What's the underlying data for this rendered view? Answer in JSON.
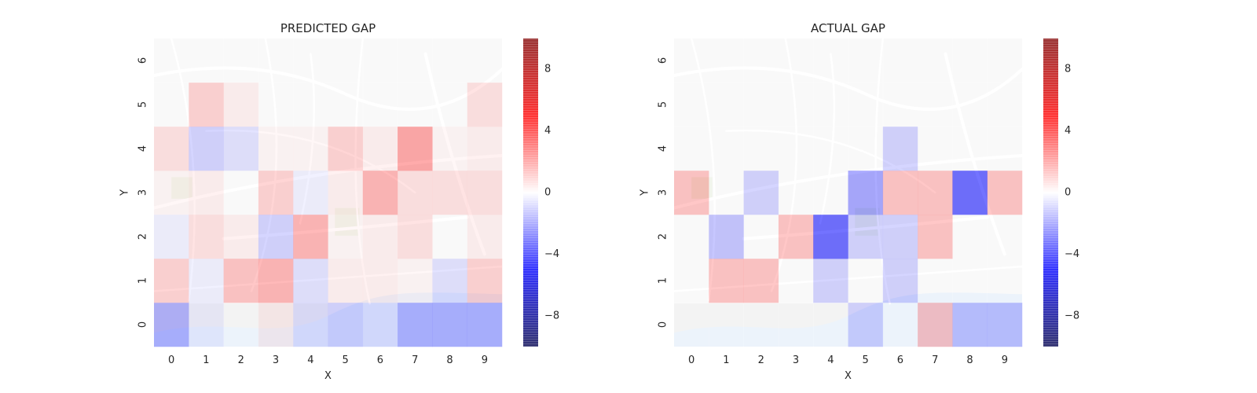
{
  "chart_data": [
    {
      "type": "heatmap",
      "title": "PREDICTED GAP",
      "xlabel": "X",
      "ylabel": "Y",
      "x": [
        0,
        1,
        2,
        3,
        4,
        5,
        6,
        7,
        8,
        9
      ],
      "y": [
        0,
        1,
        2,
        3,
        4,
        5,
        6
      ],
      "cmap": "seismic",
      "vlim": [
        -10,
        10
      ],
      "colorbar_ticks": [
        8,
        4,
        0,
        -4,
        -8
      ],
      "values": [
        [
          -2.5,
          -0.5,
          0.0,
          0.5,
          -1.0,
          -1.5,
          -1.0,
          -2.5,
          -2.5,
          -2.5
        ],
        [
          1.5,
          -0.5,
          2.0,
          2.5,
          -1.0,
          0.5,
          0.5,
          0.3,
          -1.0,
          1.5
        ],
        [
          -0.5,
          1.0,
          0.5,
          -1.5,
          2.5,
          0.3,
          0.5,
          1.0,
          0.0,
          0.5
        ],
        [
          0.3,
          0.5,
          0.0,
          1.5,
          -0.5,
          0.5,
          2.5,
          1.0,
          1.0,
          1.0
        ],
        [
          1.0,
          -1.5,
          -1.0,
          0.3,
          0.3,
          1.5,
          0.5,
          3.0,
          0.3,
          0.5
        ],
        [
          0.0,
          1.5,
          0.5,
          0.0,
          0.0,
          0.0,
          0.0,
          0.0,
          0.0,
          1.0
        ],
        [
          0.0,
          0.0,
          0.0,
          0.0,
          0.0,
          0.0,
          0.0,
          0.0,
          0.0,
          0.0
        ]
      ]
    },
    {
      "type": "heatmap",
      "title": "ACTUAL GAP",
      "xlabel": "X",
      "ylabel": "Y",
      "x": [
        0,
        1,
        2,
        3,
        4,
        5,
        6,
        7,
        8,
        9
      ],
      "y": [
        0,
        1,
        2,
        3,
        4,
        5,
        6
      ],
      "cmap": "seismic",
      "vlim": [
        -10,
        10
      ],
      "colorbar_ticks": [
        8,
        4,
        0,
        -4,
        -8
      ],
      "values": [
        [
          0.0,
          0.0,
          0.0,
          0.0,
          0.0,
          -1.5,
          0.0,
          2.0,
          -2.0,
          -2.0
        ],
        [
          0.0,
          2.0,
          2.0,
          0.0,
          -1.5,
          0.0,
          -1.5,
          0.0,
          0.0,
          0.0
        ],
        [
          0.0,
          -2.0,
          0.0,
          2.0,
          -5.0,
          -1.5,
          -1.5,
          2.0,
          0.0,
          0.0
        ],
        [
          2.0,
          0.0,
          -1.5,
          0.0,
          0.0,
          -3.0,
          2.0,
          2.0,
          -5.0,
          2.0
        ],
        [
          0.0,
          0.0,
          0.0,
          0.0,
          0.0,
          0.0,
          -1.5,
          0.0,
          0.0,
          0.0
        ],
        [
          0.0,
          0.0,
          0.0,
          0.0,
          0.0,
          0.0,
          0.0,
          0.0,
          0.0,
          0.0
        ],
        [
          0.0,
          0.0,
          0.0,
          0.0,
          0.0,
          0.0,
          0.0,
          0.0,
          0.0,
          0.0
        ]
      ]
    }
  ]
}
